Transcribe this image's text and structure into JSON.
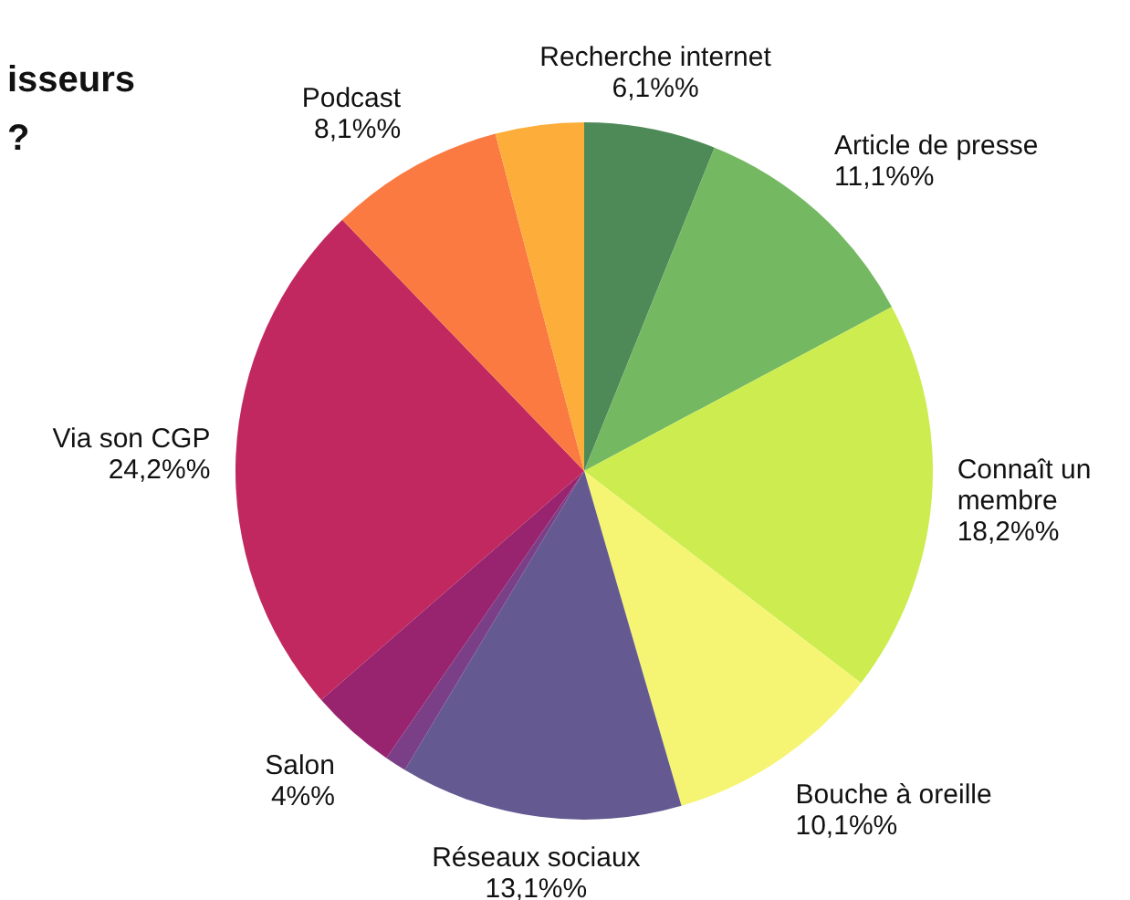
{
  "chart_data": {
    "type": "pie",
    "title": "isseurs ?",
    "categories": [
      "Recherche internet",
      "Article de presse",
      "Connaît un membre",
      "Bouche à oreille",
      "Réseaux sociaux",
      null,
      "Salon",
      "Via son CGP",
      "Podcast",
      null
    ],
    "values": [
      6.1,
      11.1,
      18.2,
      10.1,
      13.1,
      1.0,
      4,
      24.2,
      8.1,
      4.1
    ],
    "value_labels": [
      "6,1%%",
      "11,1%%",
      "18,2%%",
      "10,1%%",
      "13,1%%",
      null,
      "4%%",
      "24,2%%",
      "8,1%%",
      null
    ],
    "colors": [
      "#4e8a57",
      "#74b862",
      "#cdec50",
      "#f5f573",
      "#645a91",
      "#7a3f86",
      "#98246f",
      "#c0285f",
      "#fa7a42",
      "#fcad3a"
    ]
  }
}
